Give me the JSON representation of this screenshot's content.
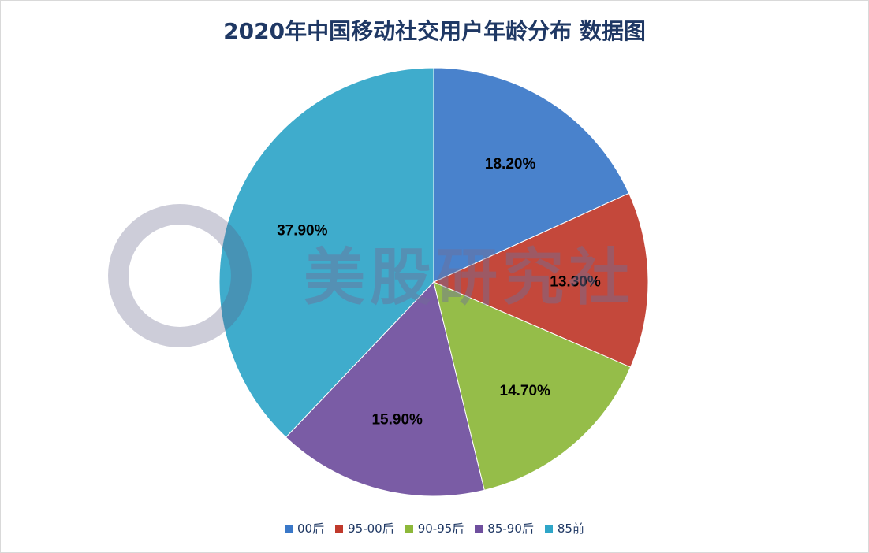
{
  "watermark": "美股研究社",
  "chart_data": {
    "type": "pie",
    "title": "2020年中国移动社交用户年龄分布 数据图",
    "categories": [
      "00后",
      "95-00后",
      "90-95后",
      "85-90后",
      "85前"
    ],
    "values": [
      18.2,
      13.3,
      14.7,
      15.9,
      37.9
    ],
    "labels": [
      "18.20%",
      "13.30%",
      "14.70%",
      "15.90%",
      "37.90%"
    ],
    "colors": [
      "#3a78c8",
      "#c0392b",
      "#8db83a",
      "#6f4f9e",
      "#2fa6c8"
    ],
    "start": "top",
    "direction": "clockwise",
    "legend_position": "bottom"
  }
}
